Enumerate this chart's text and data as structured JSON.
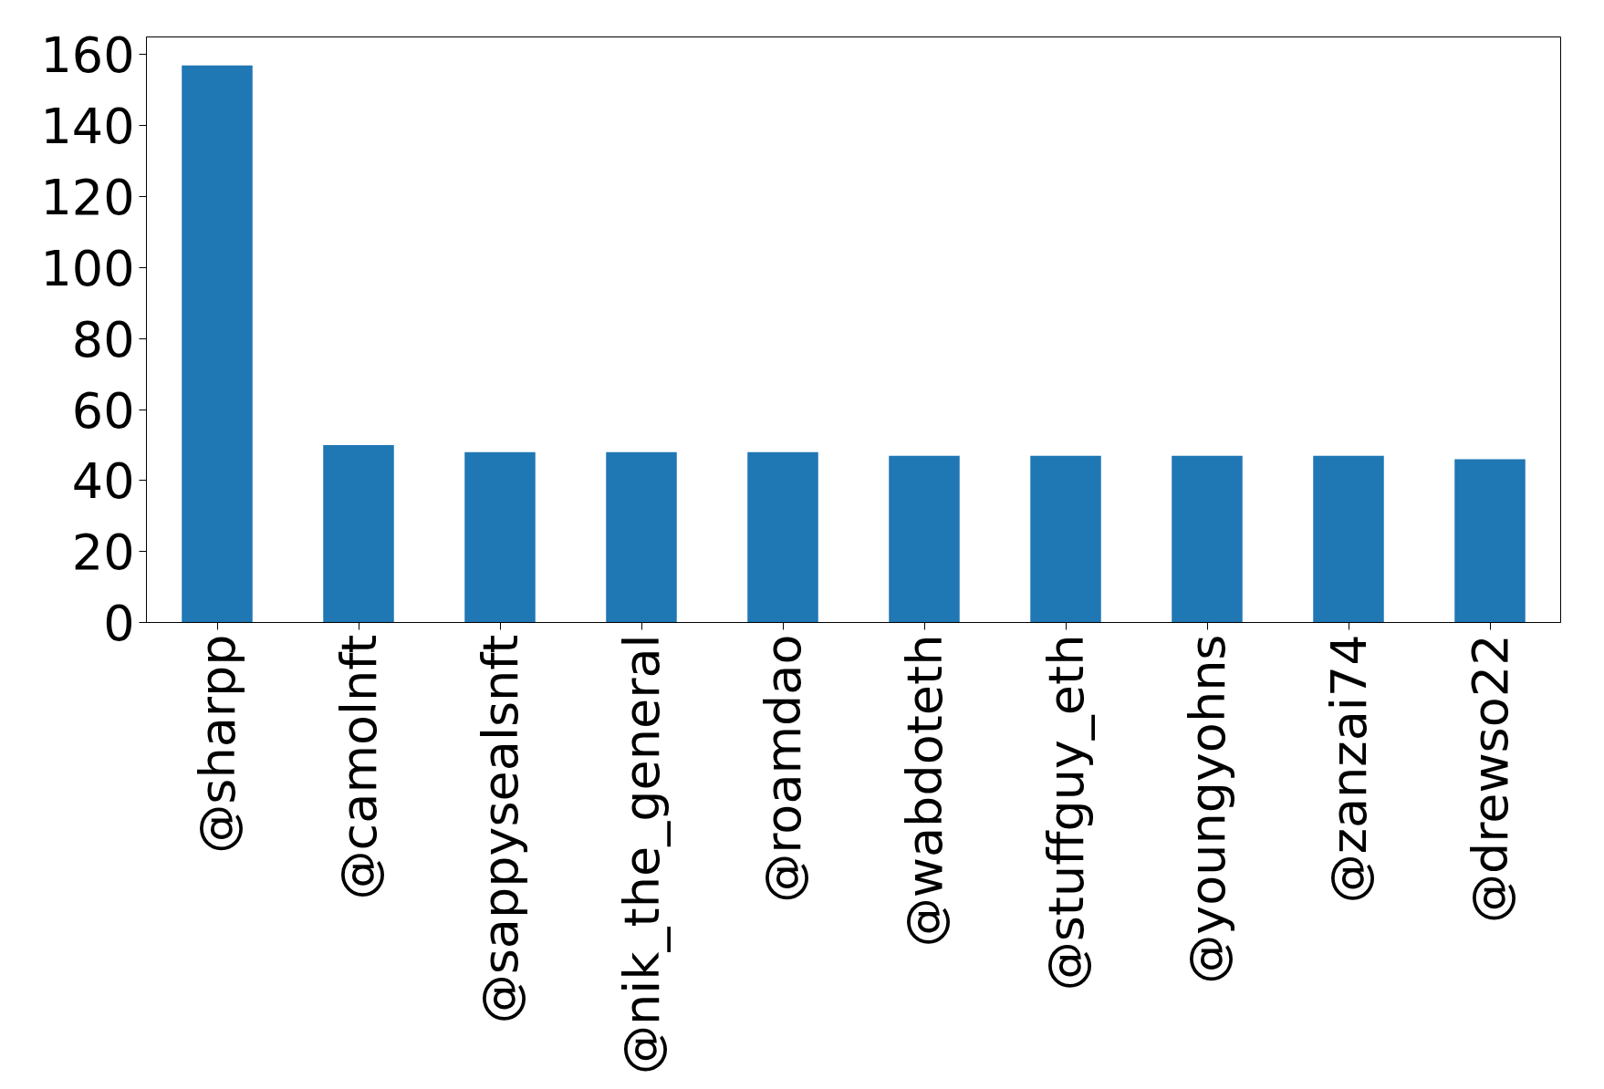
{
  "chart_data": {
    "type": "bar",
    "categories": [
      "@sharpp",
      "@camolnft",
      "@sappysealsnft",
      "@nik_the_general",
      "@roamdao",
      "@wabdoteth",
      "@stuffguy_eth",
      "@youngyohns",
      "@zanzai74",
      "@drewso22"
    ],
    "values": [
      157,
      50,
      48,
      48,
      48,
      47,
      47,
      47,
      47,
      46
    ],
    "color": "#1f77b4",
    "ylim": [
      0,
      165
    ],
    "yticks": [
      0,
      20,
      40,
      60,
      80,
      100,
      120,
      140,
      160
    ],
    "grid": false
  }
}
